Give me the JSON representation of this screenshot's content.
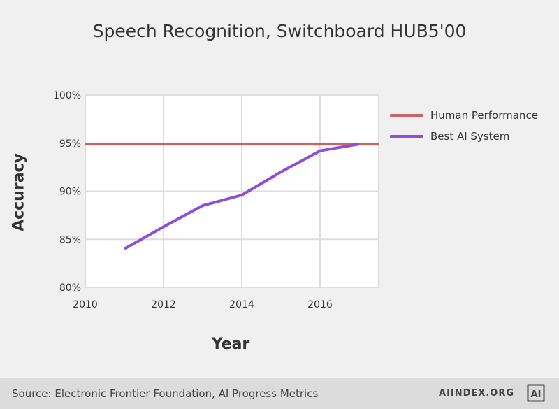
{
  "chart_data": {
    "type": "line",
    "title": "Speech Recognition, Switchboard HUB5'00",
    "xlabel": "Year",
    "ylabel": "Accuracy",
    "xlim": [
      2010,
      2017.5
    ],
    "ylim": [
      80,
      100
    ],
    "x_ticks": [
      2010,
      2012,
      2014,
      2016
    ],
    "y_ticks": [
      80,
      85,
      90,
      95,
      100
    ],
    "y_tick_labels": [
      "80%",
      "85%",
      "90%",
      "95%",
      "100%"
    ],
    "grid": true,
    "legend_position": "right",
    "series": [
      {
        "name": "Human Performance",
        "color": "#cf6363",
        "x": [
          2010,
          2017.5
        ],
        "y": [
          94.9,
          94.9
        ]
      },
      {
        "name": "Best AI System",
        "color": "#8e4fd6",
        "x": [
          2011,
          2012,
          2013,
          2014,
          2015,
          2016,
          2017
        ],
        "y": [
          84.0,
          86.3,
          88.5,
          89.6,
          92.0,
          94.2,
          94.9
        ]
      }
    ]
  },
  "footer": {
    "source": "Source: Electronic Frontier Foundation, AI Progress Metrics",
    "brand": "AIINDEX.ORG",
    "logo_text": "AI"
  }
}
